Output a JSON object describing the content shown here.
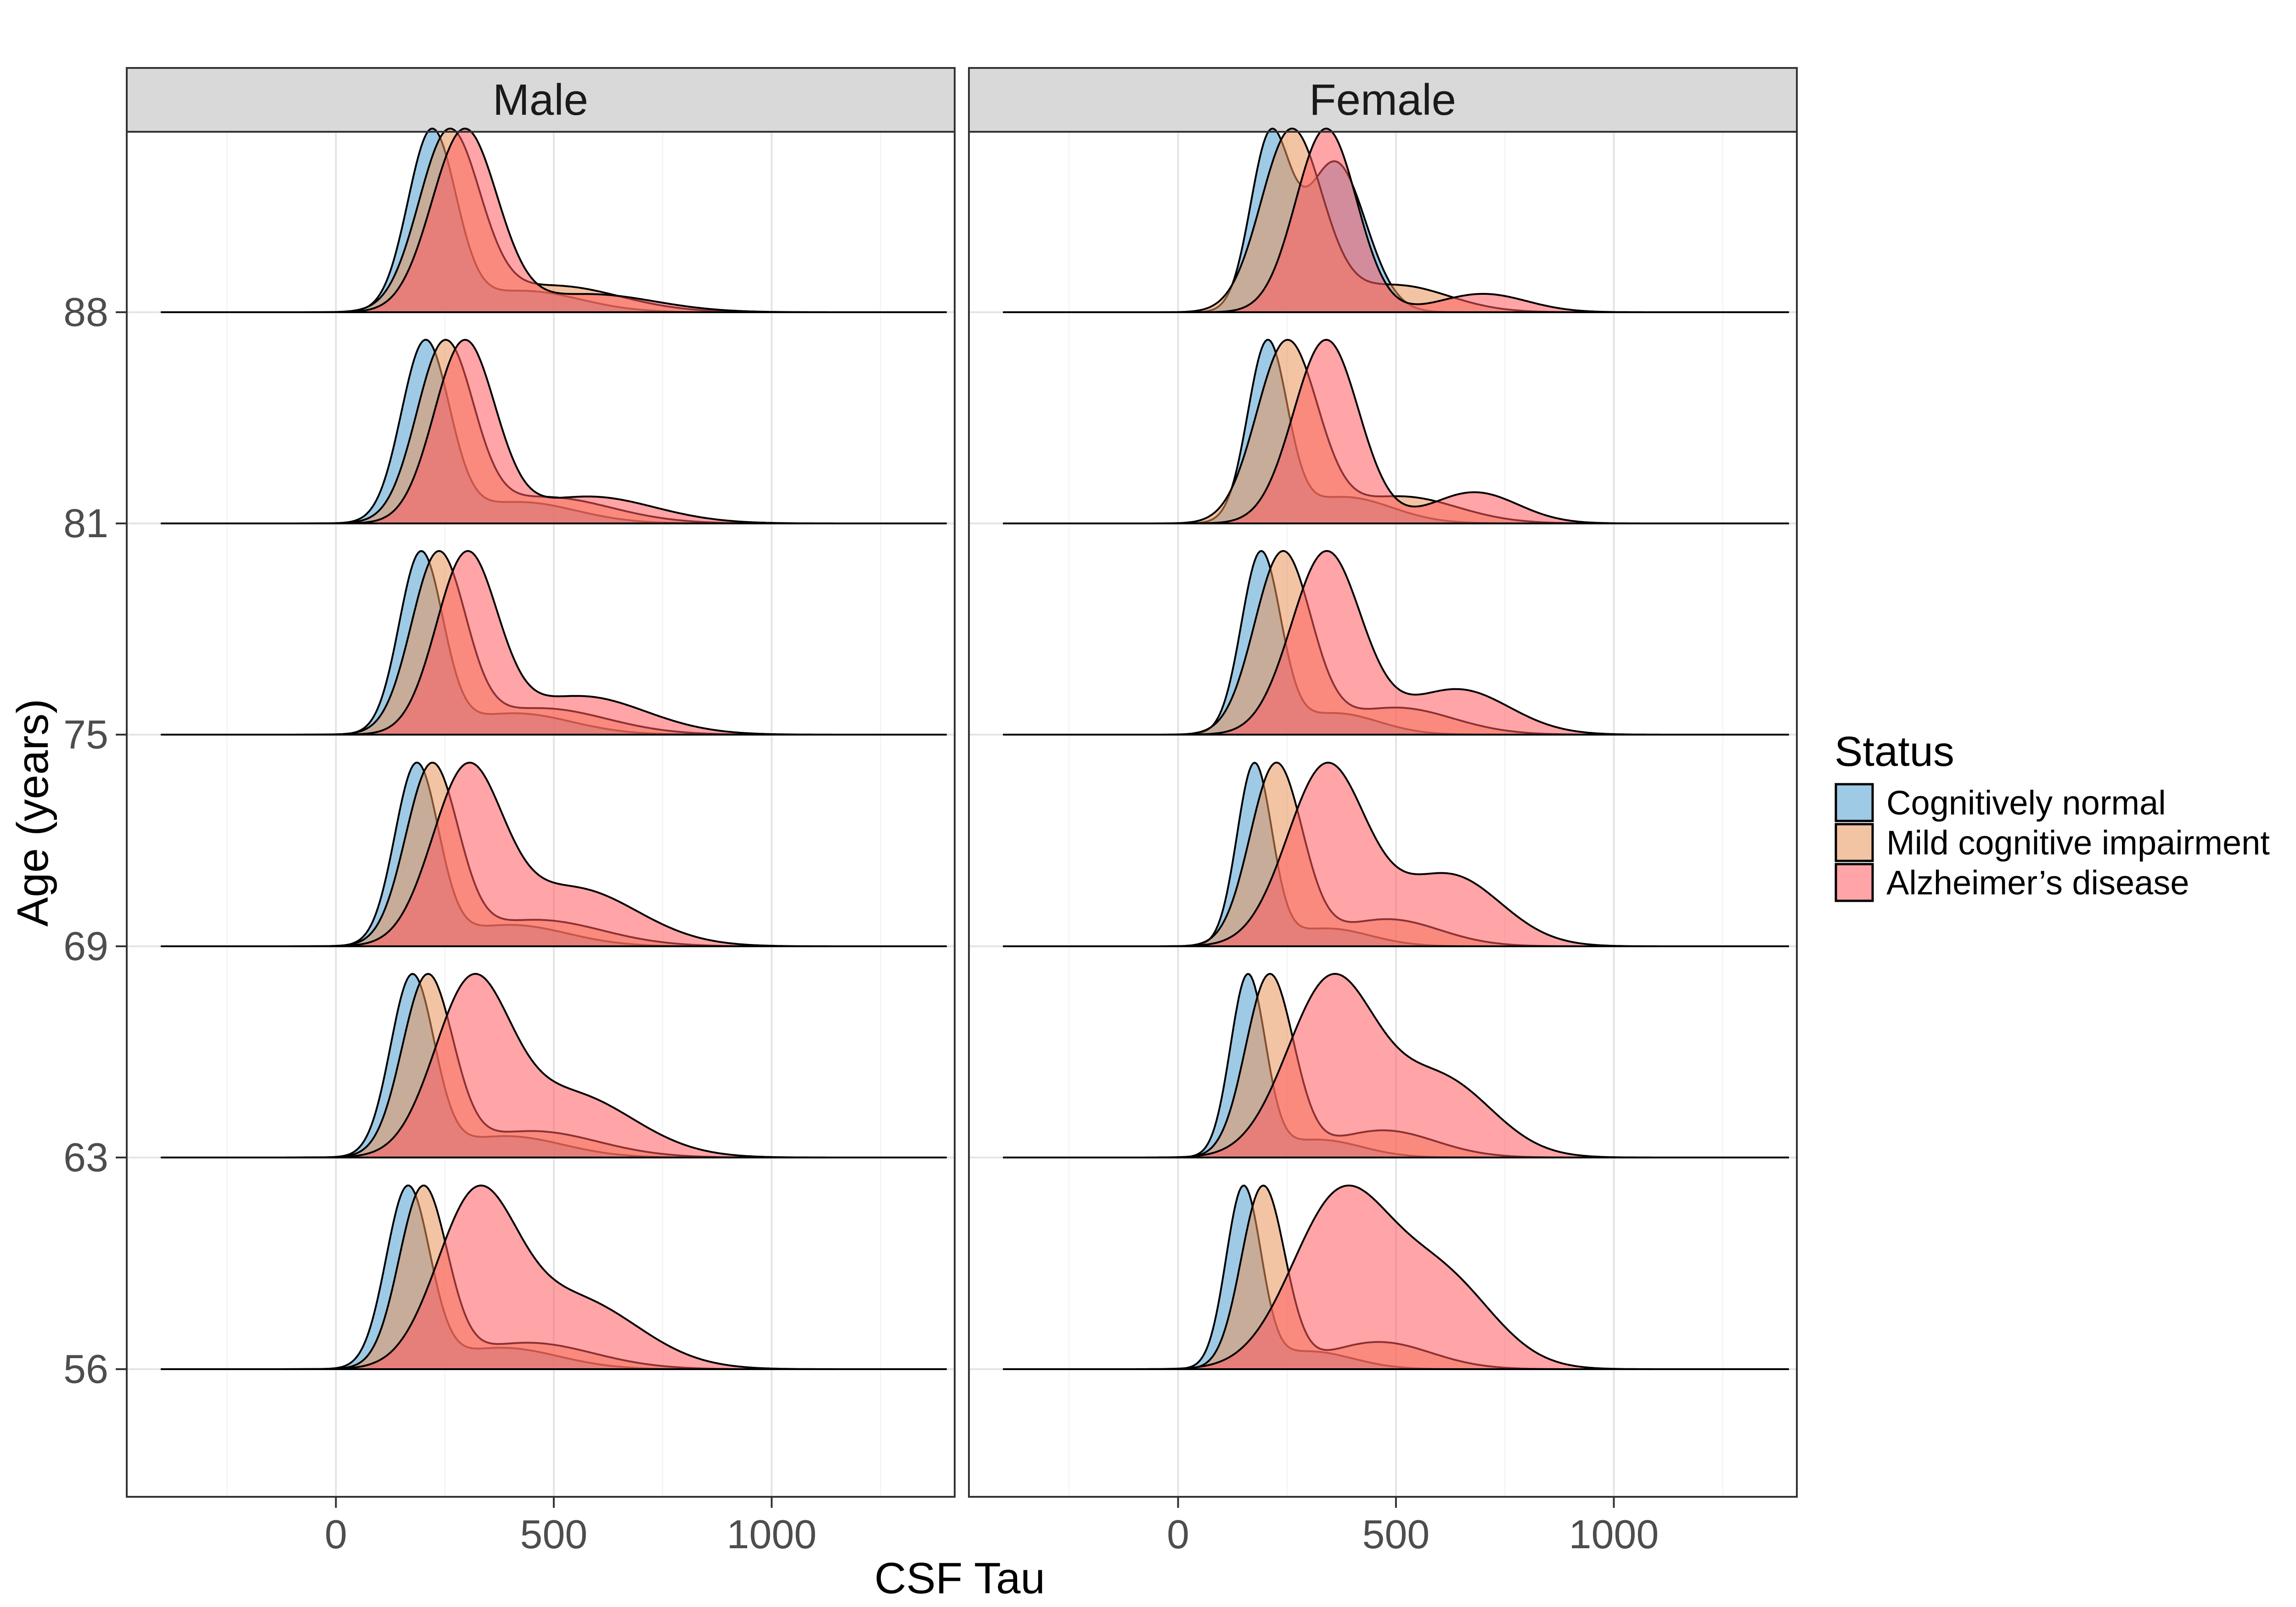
{
  "chart_data": {
    "type": "ridgeline-density",
    "xlabel": "CSF Tau",
    "ylabel": "Age (years)",
    "x_ticks": [
      0,
      500,
      1000
    ],
    "x_range": [
      -480,
      1420
    ],
    "age_ticks": [
      56,
      63,
      69,
      75,
      81,
      88
    ],
    "panels": [
      "Male",
      "Female"
    ],
    "legend": {
      "title": "Status",
      "items": [
        "Cognitively normal",
        "Mild cognitive impairment",
        "Alzheimer’s disease"
      ]
    },
    "colors": {
      "Cognitively normal": "#4e9fd1",
      "Mild cognitive impairment": "#e9945a",
      "Alzheimer’s disease": "#ff5a5f"
    },
    "density_components": {
      "Male": {
        "Cognitively normal": {
          "56": [
            [
              165,
              50,
              1
            ],
            [
              380,
              130,
              0.12
            ]
          ],
          "63": [
            [
              175,
              50,
              1
            ],
            [
              390,
              130,
              0.12
            ]
          ],
          "69": [
            [
              185,
              50,
              1
            ],
            [
              400,
              130,
              0.12
            ]
          ],
          "75": [
            [
              195,
              50,
              1
            ],
            [
              410,
              130,
              0.12
            ]
          ],
          "81": [
            [
              205,
              55,
              1
            ],
            [
              420,
              130,
              0.12
            ]
          ],
          "88": [
            [
              220,
              55,
              1
            ],
            [
              430,
              130,
              0.12
            ]
          ]
        },
        "Mild cognitive impairment": {
          "56": [
            [
              200,
              55,
              1
            ],
            [
              440,
              150,
              0.15
            ]
          ],
          "63": [
            [
              210,
              58,
              1
            ],
            [
              450,
              150,
              0.15
            ]
          ],
          "69": [
            [
              220,
              60,
              1
            ],
            [
              460,
              150,
              0.15
            ]
          ],
          "75": [
            [
              235,
              62,
              1
            ],
            [
              470,
              150,
              0.15
            ]
          ],
          "81": [
            [
              250,
              65,
              1
            ],
            [
              480,
              150,
              0.15
            ]
          ],
          "88": [
            [
              260,
              70,
              1
            ],
            [
              500,
              150,
              0.15
            ]
          ]
        },
        "Alzheimer’s disease": {
          "56": [
            [
              320,
              90,
              1
            ],
            [
              540,
              150,
              0.45
            ]
          ],
          "63": [
            [
              310,
              85,
              1
            ],
            [
              530,
              150,
              0.4
            ]
          ],
          "69": [
            [
              300,
              80,
              1
            ],
            [
              540,
              150,
              0.35
            ]
          ],
          "75": [
            [
              300,
              70,
              1
            ],
            [
              560,
              150,
              0.22
            ]
          ],
          "81": [
            [
              295,
              70,
              1
            ],
            [
              580,
              150,
              0.15
            ]
          ],
          "88": [
            [
              295,
              75,
              1
            ],
            [
              580,
              150,
              0.1
            ]
          ]
        }
      },
      "Female": {
        "Cognitively normal": {
          "56": [
            [
              150,
              40,
              1
            ],
            [
              300,
              100,
              0.1
            ]
          ],
          "63": [
            [
              160,
              40,
              1
            ],
            [
              320,
              100,
              0.1
            ]
          ],
          "69": [
            [
              175,
              40,
              1
            ],
            [
              340,
              100,
              0.1
            ]
          ],
          "75": [
            [
              190,
              45,
              1
            ],
            [
              360,
              100,
              0.12
            ]
          ],
          "81": [
            [
              205,
              45,
              1
            ],
            [
              380,
              110,
              0.15
            ]
          ],
          "88": [
            [
              210,
              45,
              1
            ],
            [
              360,
              70,
              0.9
            ]
          ]
        },
        "Mild cognitive impairment": {
          "56": [
            [
              195,
              50,
              1
            ],
            [
              460,
              120,
              0.15
            ]
          ],
          "63": [
            [
              210,
              55,
              1
            ],
            [
              470,
              120,
              0.15
            ]
          ],
          "69": [
            [
              225,
              60,
              1
            ],
            [
              480,
              120,
              0.15
            ]
          ],
          "75": [
            [
              240,
              65,
              1
            ],
            [
              500,
              130,
              0.15
            ]
          ],
          "81": [
            [
              250,
              70,
              1
            ],
            [
              510,
              130,
              0.15
            ]
          ],
          "88": [
            [
              260,
              70,
              1
            ],
            [
              500,
              120,
              0.15
            ]
          ]
        },
        "Alzheimer’s disease": {
          "56": [
            [
              370,
              110,
              1
            ],
            [
              600,
              120,
              0.55
            ]
          ],
          "63": [
            [
              350,
              100,
              1
            ],
            [
              600,
              120,
              0.45
            ]
          ],
          "69": [
            [
              340,
              90,
              1
            ],
            [
              620,
              120,
              0.4
            ]
          ],
          "75": [
            [
              340,
              80,
              1
            ],
            [
              640,
              120,
              0.25
            ]
          ],
          "81": [
            [
              340,
              75,
              1
            ],
            [
              680,
              100,
              0.17
            ]
          ],
          "88": [
            [
              340,
              70,
              1
            ],
            [
              700,
              100,
              0.1
            ]
          ]
        }
      }
    }
  }
}
